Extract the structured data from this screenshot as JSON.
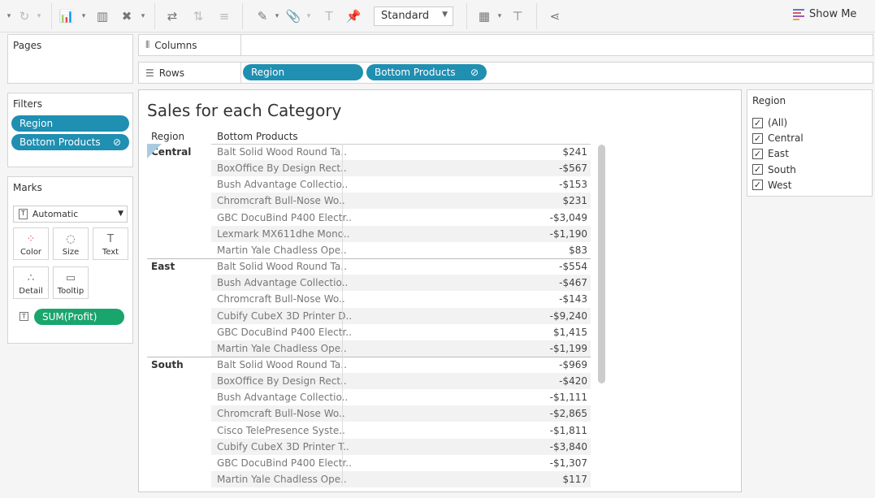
{
  "toolbar": {
    "fit_select": "Standard",
    "show_me": "Show Me",
    "show_me_colors": [
      "#5a7bd4",
      "#e05a5a",
      "#9b59b6",
      "#e8a33d"
    ]
  },
  "pages": {
    "title": "Pages"
  },
  "filters": {
    "title": "Filters",
    "items": [
      {
        "label": "Region"
      },
      {
        "label": "Bottom Products",
        "icon": "set-icon"
      }
    ]
  },
  "marks": {
    "title": "Marks",
    "type": "Automatic",
    "buttons": [
      "Color",
      "Size",
      "Text",
      "Detail",
      "Tooltip"
    ],
    "field": "SUM(Profit)"
  },
  "columns": {
    "label": "Columns"
  },
  "rows": {
    "label": "Rows",
    "pills": [
      "Region",
      "Bottom Products"
    ]
  },
  "view": {
    "title": "Sales for each Category",
    "headers": [
      "Region",
      "Bottom Products"
    ],
    "groups": [
      {
        "region": "Central",
        "rows": [
          [
            "Balt Solid Wood Round Ta..",
            "$241"
          ],
          [
            "BoxOffice By Design Rect..",
            "-$567"
          ],
          [
            "Bush Advantage Collectio..",
            "-$153"
          ],
          [
            "Chromcraft Bull-Nose Wo..",
            "$231"
          ],
          [
            "GBC DocuBind P400 Electr..",
            "-$3,049"
          ],
          [
            "Lexmark MX611dhe Mono..",
            "-$1,190"
          ],
          [
            "Martin Yale Chadless Ope..",
            "$83"
          ]
        ]
      },
      {
        "region": "East",
        "rows": [
          [
            "Balt Solid Wood Round Ta..",
            "-$554"
          ],
          [
            "Bush Advantage Collectio..",
            "-$467"
          ],
          [
            "Chromcraft Bull-Nose Wo..",
            "-$143"
          ],
          [
            "Cubify CubeX 3D Printer D..",
            "-$9,240"
          ],
          [
            "GBC DocuBind P400 Electr..",
            "$1,415"
          ],
          [
            "Martin Yale Chadless Ope..",
            "-$1,199"
          ]
        ]
      },
      {
        "region": "South",
        "rows": [
          [
            "Balt Solid Wood Round Ta..",
            "-$969"
          ],
          [
            "BoxOffice By Design Rect..",
            "-$420"
          ],
          [
            "Bush Advantage Collectio..",
            "-$1,111"
          ],
          [
            "Chromcraft Bull-Nose Wo..",
            "-$2,865"
          ],
          [
            "Cisco TelePresence Syste..",
            "-$1,811"
          ],
          [
            "Cubify CubeX 3D Printer T..",
            "-$3,840"
          ],
          [
            "GBC DocuBind P400 Electr..",
            "-$1,307"
          ],
          [
            "Martin Yale Chadless Ope..",
            "$117"
          ]
        ]
      }
    ]
  },
  "region_filter": {
    "title": "Region",
    "options": [
      {
        "label": "(All)",
        "checked": true
      },
      {
        "label": "Central",
        "checked": true
      },
      {
        "label": "East",
        "checked": true
      },
      {
        "label": "South",
        "checked": true
      },
      {
        "label": "West",
        "checked": true
      }
    ]
  }
}
